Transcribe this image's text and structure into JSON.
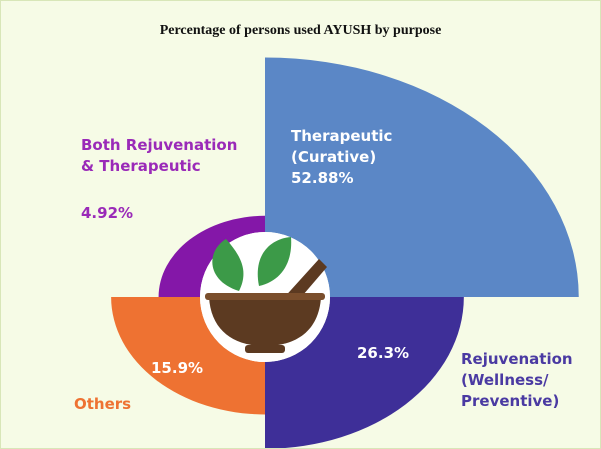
{
  "chart_data": {
    "type": "polar_area",
    "title": "Percentage of persons used AYUSH by purpose",
    "categories": [
      "Therapeutic (Curative)",
      "Rejuvenation (Wellness/ Preventive)",
      "Others",
      "Both Rejuvenation & Therapeutic"
    ],
    "values": [
      52.88,
      26.3,
      15.9,
      4.92
    ],
    "value_labels": [
      "52.88%",
      "26.3%",
      "15.9%",
      "4.92%"
    ],
    "colors": [
      "#5b87c6",
      "#3e2f98",
      "#ee7232",
      "#8417a8"
    ]
  }
}
